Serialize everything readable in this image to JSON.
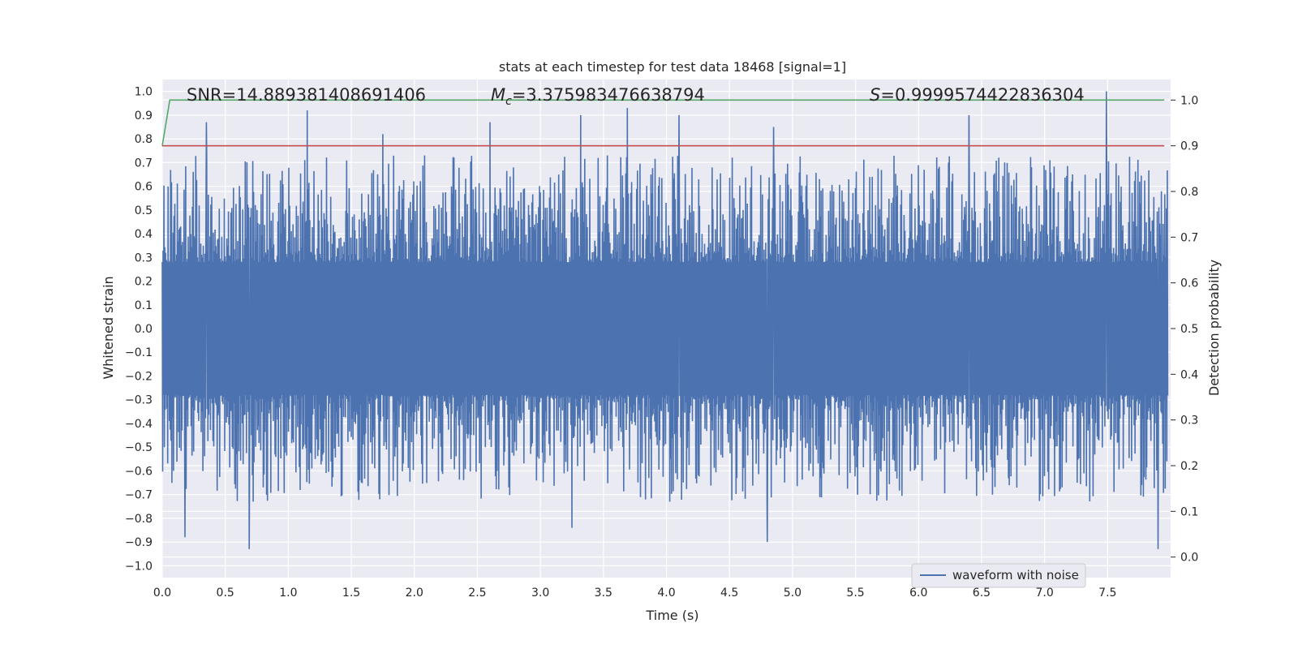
{
  "chart_data": {
    "type": "line",
    "title": "stats at each timestep for test data 18468 [signal=1]",
    "xlabel": "Time (s)",
    "ylabel": "Whitened strain",
    "y2label": "Detection probability",
    "xlim": [
      0.0,
      8.0
    ],
    "ylim": [
      -1.05,
      1.05
    ],
    "y2lim": [
      -0.045,
      1.045
    ],
    "xticks": [
      "0.0",
      "0.5",
      "1.0",
      "1.5",
      "2.0",
      "2.5",
      "3.0",
      "3.5",
      "4.0",
      "4.5",
      "5.0",
      "5.5",
      "6.0",
      "6.5",
      "7.0",
      "7.5"
    ],
    "yticks": [
      "1.0",
      "0.9",
      "0.8",
      "0.7",
      "0.6",
      "0.5",
      "0.4",
      "0.3",
      "0.2",
      "0.1",
      "0.0",
      "−0.1",
      "−0.2",
      "−0.3",
      "−0.4",
      "−0.5",
      "−0.6",
      "−0.7",
      "−0.8",
      "−0.9",
      "−1.0"
    ],
    "y2ticks": [
      "1.0",
      "0.9",
      "0.8",
      "0.7",
      "0.6",
      "0.5",
      "0.4",
      "0.3",
      "0.2",
      "0.1",
      "0.0"
    ],
    "grid": true,
    "legend_position": "lower-right",
    "annotations": {
      "snr": "SNR=14.889381408691406",
      "mc_symbol": "M",
      "mc_sub": "c",
      "mc_value": "=3.375983476638794",
      "s_symbol": "S",
      "s_value": "=0.9999574422836304"
    },
    "series": [
      {
        "name": "waveform with noise",
        "axis": "left",
        "color": "#4c72b0",
        "peaks_upper": [
          [
            0.35,
            0.87
          ],
          [
            1.15,
            0.92
          ],
          [
            2.6,
            0.87
          ],
          [
            3.32,
            0.9
          ],
          [
            3.69,
            0.93
          ],
          [
            4.1,
            0.9
          ],
          [
            7.49,
            1.0
          ],
          [
            6.4,
            0.9
          ],
          [
            4.85,
            0.85
          ],
          [
            1.75,
            0.82
          ]
        ],
        "peaks_lower": [
          [
            0.18,
            -0.88
          ],
          [
            0.69,
            -0.93
          ],
          [
            3.25,
            -0.84
          ],
          [
            4.8,
            -0.9
          ],
          [
            7.9,
            -0.93
          ]
        ]
      },
      {
        "axis": "right",
        "color": "#55a868",
        "x": [
          0.0,
          0.06,
          7.95
        ],
        "y": [
          0.9,
          1.0,
          1.0
        ]
      },
      {
        "axis": "right",
        "color": "#c44e52",
        "x": [
          0.0,
          7.95
        ],
        "y": [
          0.9,
          0.9
        ]
      }
    ]
  }
}
